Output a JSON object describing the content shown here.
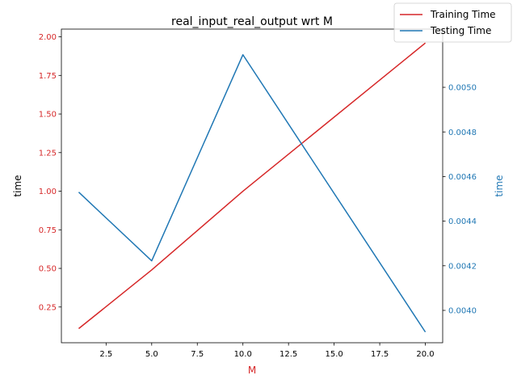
{
  "chart_data": {
    "type": "line",
    "title": "real_input_real_output wrt M",
    "xlabel": "M",
    "ylabel_left": "time",
    "ylabel_right": "time",
    "xlim": [
      0.05,
      20.95
    ],
    "ylim_left": [
      0.0185,
      2.05
    ],
    "ylim_right": [
      0.003855,
      0.005261
    ],
    "x_ticks": [
      2.5,
      5.0,
      7.5,
      10.0,
      12.5,
      15.0,
      17.5,
      20.0
    ],
    "y_left_ticks": [
      0.25,
      0.5,
      0.75,
      1.0,
      1.25,
      1.5,
      1.75,
      2.0
    ],
    "y_right_ticks": [
      0.004,
      0.0042,
      0.0044,
      0.0046,
      0.0048,
      0.005
    ],
    "grid": false,
    "legend_position": "top-right",
    "series": [
      {
        "name": "Training Time",
        "axis": "left",
        "color": "#d62728",
        "x": [
          1,
          5,
          10,
          20
        ],
        "y": [
          0.11,
          0.49,
          1.0,
          1.96
        ]
      },
      {
        "name": "Testing Time",
        "axis": "right",
        "color": "#1f77b4",
        "x": [
          1,
          5,
          10,
          20
        ],
        "y": [
          0.00453,
          0.004222,
          0.005146,
          0.003903
        ]
      }
    ],
    "colors": {
      "left_axis": "#d62728",
      "right_axis": "#1f77b4",
      "xlabel": "#d62728"
    }
  }
}
